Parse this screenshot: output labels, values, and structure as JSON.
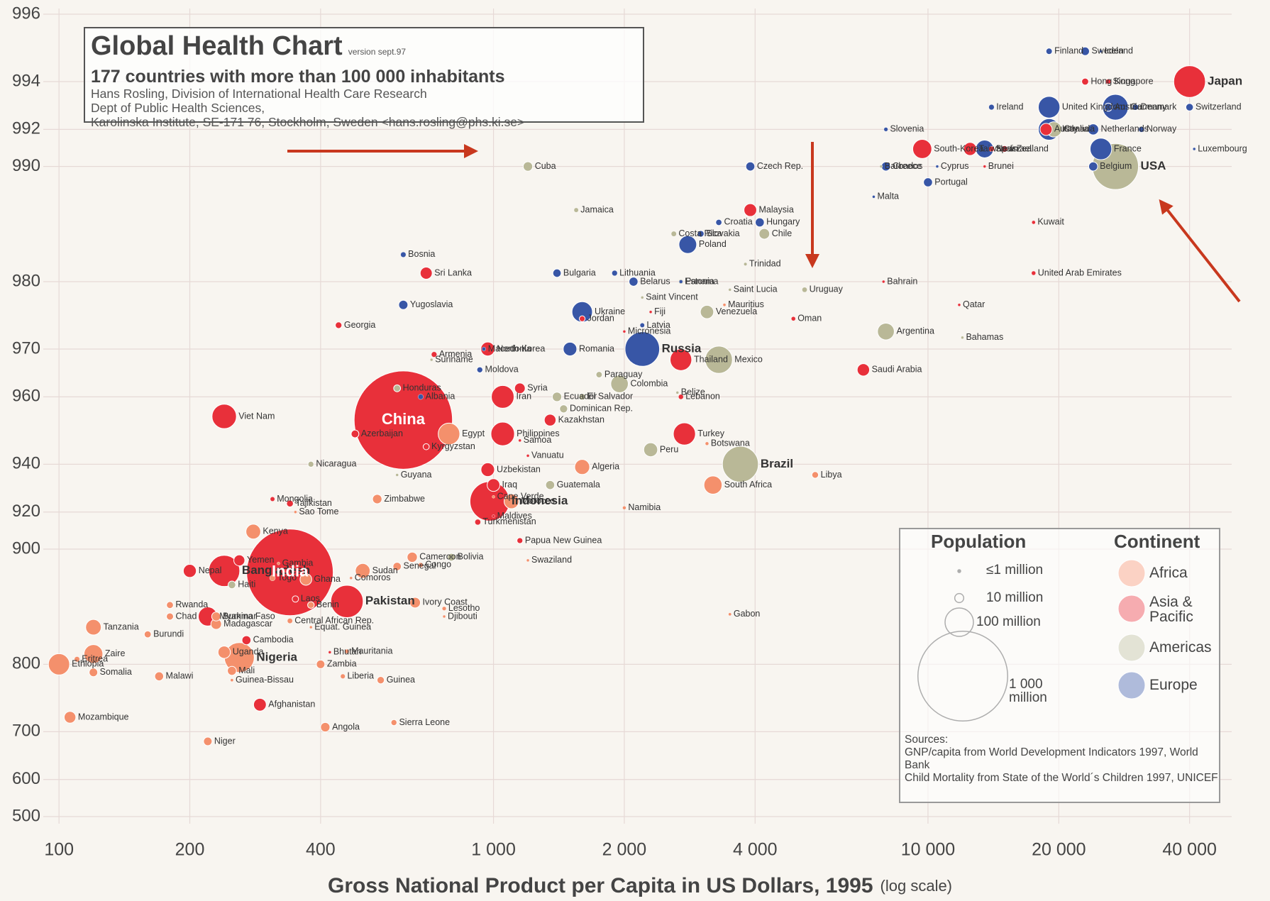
{
  "chart_data": {
    "type": "scatter",
    "title": "Global Health Chart",
    "version": "version sept.97",
    "subtitle": "177 countries with more than 100 000 inhabitants",
    "credits": [
      "Hans Rosling, Division of International Health Care Research",
      "Dept of Public Health Sciences,",
      "Karolinska Institute, SE-171 76, Stockholm, Sweden <hans.rosling@phs.ki.se>"
    ],
    "xlabel": "Gross National Product per Capita in US Dollars, 1995",
    "xlabel_note": "(log scale)",
    "xscale": "log",
    "yscale": "log-deaths-per-thousand",
    "xlim": [
      92,
      50000
    ],
    "ylim": [
      996,
      500
    ],
    "xticks": [
      100,
      200,
      400,
      {
        "value": 1000,
        "label": "1 000"
      },
      {
        "value": 2000,
        "label": "2 000"
      },
      {
        "value": 4000,
        "label": "4 000"
      },
      {
        "value": 10000,
        "label": "10 000"
      },
      {
        "value": 20000,
        "label": "20 000"
      },
      {
        "value": 40000,
        "label": "40 000"
      }
    ],
    "yticks": [
      996,
      994,
      992,
      990,
      980,
      970,
      960,
      940,
      920,
      900,
      800,
      700,
      600,
      500
    ],
    "grid": true,
    "size_legend": {
      "title": "Population",
      "items": [
        {
          "value": 1,
          "label": "≤1 million"
        },
        {
          "value": 10,
          "label": "10 million"
        },
        {
          "value": 100,
          "label": "100 million"
        },
        {
          "value": 1000,
          "label": "1 000 million"
        }
      ]
    },
    "color_legend_title": "Continent",
    "sources": [
      "Sources:",
      "GNP/capita from World Development Indicators 1997, World Bank",
      "Child Mortality from State of the World´s Children 1997, UNICEF"
    ],
    "series": [
      {
        "name": "Africa",
        "color": "#f4906c",
        "labels": [
          "Libya",
          "Gabon",
          "Botswana",
          "South Africa",
          "Namibia",
          "Mauritius",
          "Algeria",
          "Egypt",
          "Morocco",
          "Swaziland",
          "Cape Verde",
          "Zimbabwe",
          "Sao Tome",
          "Kenya",
          "Cameroon",
          "Congo",
          "Sudan",
          "Senegal",
          "Comoros",
          "Gambia",
          "Togo",
          "Ghana",
          "Benin",
          "Ivory Coast",
          "Lesotho",
          "Djibouti",
          "Central African Rep.",
          "Equat. Guinea",
          "Mauritania",
          "Burkina Faso",
          "Madagascar",
          "Chad",
          "Rwanda",
          "Burundi",
          "Uganda",
          "Mali",
          "Nigeria",
          "Zambia",
          "Liberia",
          "Guinea",
          "Guinea-Bissau",
          "Tanzania",
          "Zaire",
          "Eritrea",
          "Ethiopia",
          "Somalia",
          "Malawi",
          "Mozambique",
          "Niger",
          "Angola",
          "Sierra Leone"
        ],
        "x": [
          5500,
          3500,
          3100,
          3200,
          2000,
          3400,
          1600,
          790,
          1100,
          1200,
          1000,
          540,
          350,
          280,
          650,
          680,
          500,
          600,
          470,
          320,
          310,
          370,
          380,
          660,
          770,
          770,
          340,
          380,
          460,
          230,
          230,
          180,
          180,
          160,
          240,
          250,
          260,
          400,
          450,
          550,
          250,
          120,
          120,
          110,
          100,
          120,
          170,
          106,
          220,
          410,
          590
        ],
        "values": [
          936,
          852,
          947,
          932,
          922,
          977,
          939,
          950,
          925,
          893,
          927,
          926,
          920,
          910,
          895,
          890,
          886,
          889,
          881,
          891,
          881,
          880,
          860,
          862,
          857,
          850,
          846,
          840,
          815,
          850,
          843,
          850,
          860,
          833,
          814,
          792,
          808,
          800,
          785,
          780,
          780,
          840,
          812,
          806,
          800,
          790,
          785,
          725,
          682,
          708,
          716
        ],
        "sizes": [
          5.5,
          1.1,
          1.5,
          41,
          1.5,
          1.1,
          28,
          58,
          27,
          0.9,
          0.4,
          11,
          0.13,
          27,
          13,
          2.6,
          27,
          8.5,
          0.5,
          1.1,
          4,
          17,
          5.5,
          14,
          2,
          0.6,
          3.3,
          0.4,
          2.3,
          10,
          14,
          6.3,
          6,
          6,
          19,
          10,
          111,
          9,
          2.7,
          6.6,
          1.1,
          30,
          44,
          3.5,
          56,
          9,
          9.8,
          17,
          9,
          11,
          4.5
        ]
      },
      {
        "name": "Asia & Pacific",
        "color": "#e8303a",
        "labels": [
          "Japan",
          "Hong Kong",
          "Singapore",
          "Australia",
          "Taiwan",
          "Israel",
          "New Zealand",
          "Brunei",
          "South-Korea",
          "Kuwait",
          "United Arab Emirates",
          "Qatar",
          "Bahrain",
          "Saudi Arabia",
          "Oman",
          "Malaysia",
          "Fiji",
          "Micronesia",
          "Thailand",
          "Turkey",
          "Iran",
          "Syria",
          "Jordan",
          "Lebanon",
          "Kazakhstan",
          "Philippines",
          "Samoa",
          "Vanuatu",
          "Uzbekistan",
          "Iraq",
          "Indonesia",
          "Maldives",
          "Turkmenistan",
          "Papua New Guinea",
          "Mongolia",
          "Tajikistan",
          "Azerbaijan",
          "Georgia",
          "Armenia",
          "Kyrgyzstan",
          "North-Korea",
          "Viet Nam",
          "Sri Lanka",
          "China",
          "Myanmar",
          "Bangladesh",
          "Nepal",
          "India",
          "Pakistan",
          "Cambodia",
          "Laos",
          "Bhutan",
          "Afghanistan",
          "Yemen"
        ],
        "x": [
          40000,
          23000,
          26000,
          18700,
          12500,
          15000,
          14000,
          13500,
          9700,
          17500,
          17500,
          11800,
          7900,
          7100,
          4900,
          3900,
          2300,
          2000,
          2700,
          2750,
          1050,
          1150,
          1600,
          2700,
          1350,
          1050,
          1150,
          1200,
          970,
          1000,
          980,
          1000,
          920,
          1150,
          310,
          340,
          480,
          440,
          730,
          700,
          970,
          240,
          700,
          620,
          220,
          240,
          200,
          340,
          460,
          270,
          350,
          420,
          290,
          260
        ],
        "values": [
          994,
          994,
          994,
          992,
          991,
          991,
          991,
          990,
          991,
          986,
          981,
          977,
          980,
          966,
          975,
          987,
          976,
          973,
          968,
          950,
          960,
          962,
          975,
          960,
          954,
          950,
          948,
          943,
          938,
          932,
          925,
          918,
          915,
          905,
          926,
          924,
          950,
          974,
          969,
          946,
          970,
          955,
          981,
          954,
          850,
          886,
          886,
          885,
          863,
          827,
          865,
          814,
          745,
          893
        ],
        "sizes": [
          125,
          6,
          3,
          18,
          21,
          5.5,
          3.6,
          0.3,
          45,
          1.6,
          2.2,
          0.6,
          0.6,
          19,
          2.2,
          20,
          0.8,
          0.1,
          58,
          61,
          64,
          14,
          4.2,
          3,
          17,
          69,
          0.2,
          0.2,
          23,
          20,
          193,
          0.25,
          4,
          4.3,
          2.5,
          5.8,
          7.5,
          5.4,
          3.7,
          4.6,
          24,
          74,
          18,
          1200,
          45,
          120,
          21,
          930,
          130,
          10,
          5,
          0.7,
          20,
          15
        ]
      },
      {
        "name": "Americas",
        "color": "#b9b897",
        "labels": [
          "USA",
          "Canada",
          "Barbados",
          "Cuba",
          "Jamaica",
          "Chile",
          "Costa Rica",
          "Panama",
          "Saint Lucia",
          "Saint Vincent",
          "Uruguay",
          "Venezuela",
          "Trinidad",
          "Argentina",
          "Bahamas",
          "Mexico",
          "Colombia",
          "Paraguay",
          "Suriname",
          "Belize",
          "Ecuador",
          "El Salvador",
          "Dominican Rep.",
          "Honduras",
          "Peru",
          "Brazil",
          "Nicaragua",
          "Guyana",
          "Guatemala",
          "Bolivia",
          "Haiti"
        ],
        "x": [
          27000,
          19500,
          7800,
          1200,
          1550,
          4200,
          2600,
          2700,
          3500,
          2200,
          5200,
          3100,
          3800,
          8000,
          12000,
          3300,
          1950,
          1750,
          720,
          2650,
          1400,
          1600,
          1450,
          600,
          2300,
          3700,
          380,
          600,
          1350,
          800,
          250
        ],
        "values": [
          990,
          992,
          990,
          990,
          987,
          985,
          985,
          980,
          979,
          978,
          979,
          976,
          982,
          973,
          972,
          968,
          963,
          965,
          968,
          961,
          960,
          960,
          957,
          962,
          945,
          940,
          940,
          936,
          932,
          895,
          876
        ],
        "sizes": [
          263,
          29,
          0.3,
          11,
          2.5,
          14,
          3.4,
          2.6,
          0.15,
          0.1,
          3.2,
          22,
          1.3,
          35,
          0.3,
          92,
          38,
          5,
          0.4,
          0.2,
          11,
          5.6,
          8,
          5.9,
          24,
          160,
          4.4,
          0.8,
          10,
          7.4,
          7.2
        ]
      },
      {
        "name": "Europe",
        "color": "#3856a6",
        "labels": [
          "Finland",
          "Sweden",
          "Iceland",
          "Denmark",
          "Switzerland",
          "Germany",
          "Austria",
          "Netherlands",
          "Norway",
          "France",
          "Belgium",
          "United Kingdom",
          "Ireland",
          "Italy",
          "Spain",
          "Luxembourg",
          "Slovenia",
          "Greece",
          "Portugal",
          "Malta",
          "Cyprus",
          "Czech Rep.",
          "Croatia",
          "Hungary",
          "Slovakia",
          "Poland",
          "Lithuania",
          "Bulgaria",
          "Belarus",
          "Estonia",
          "Latvia",
          "Ukraine",
          "Romania",
          "Russia",
          "Macedonia",
          "Moldova",
          "Albania",
          "Bosnia",
          "Yugoslavia"
        ],
        "x": [
          19000,
          23000,
          25000,
          30000,
          40000,
          27000,
          26000,
          24000,
          31000,
          25000,
          24000,
          19000,
          14000,
          19000,
          13500,
          41000,
          8000,
          8000,
          10000,
          7500,
          10500,
          3900,
          3300,
          4100,
          3000,
          2800,
          1900,
          1400,
          2100,
          2700,
          2200,
          1600,
          1500,
          2200,
          950,
          930,
          680,
          620,
          620
        ],
        "values": [
          995,
          995,
          995,
          993,
          993,
          993,
          993,
          992,
          992,
          991,
          990,
          993,
          993,
          992,
          991,
          991,
          992,
          990,
          989,
          988,
          990,
          990,
          986,
          986,
          985,
          984,
          981,
          981,
          980,
          980,
          974,
          976,
          970,
          970,
          970,
          966,
          960,
          983,
          977
        ],
        "sizes": [
          5,
          9,
          0.3,
          5,
          7,
          82,
          8,
          15,
          4,
          58,
          10,
          58,
          3.6,
          57,
          39,
          0.4,
          2,
          10,
          10,
          0.4,
          0.7,
          10,
          4.8,
          10,
          5.4,
          39,
          3.7,
          8.5,
          10,
          1.5,
          2.5,
          52,
          23,
          148,
          2,
          4.4,
          3.4,
          3.5,
          10.5
        ]
      }
    ]
  }
}
